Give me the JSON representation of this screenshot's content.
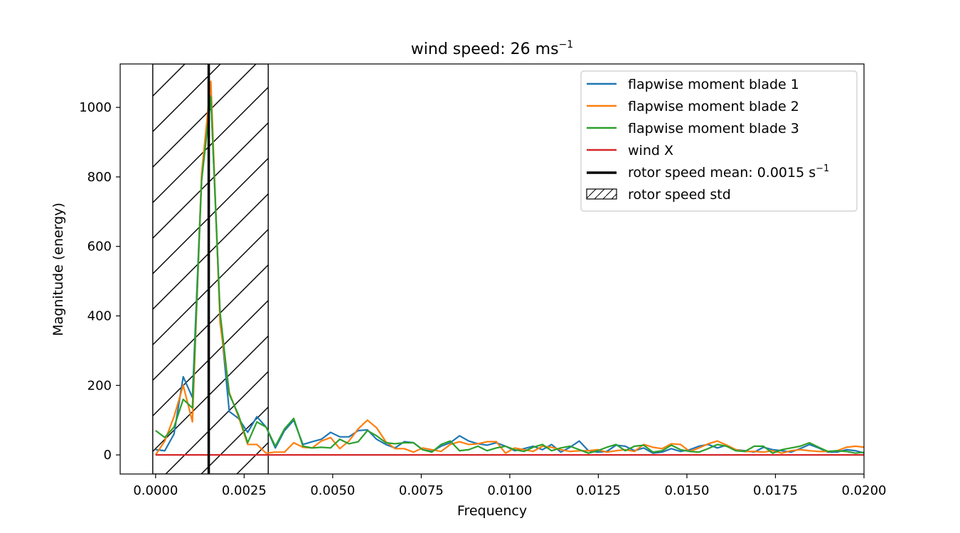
{
  "chart_data": {
    "type": "line",
    "title_main": "wind speed: 26 ms",
    "title_sup": "−1",
    "xlabel": "Frequency",
    "ylabel": "Magnitude (energy)",
    "xlim": [
      -0.001,
      0.02
    ],
    "ylim": [
      -55,
      1125
    ],
    "xticks": [
      0.0,
      0.0025,
      0.005,
      0.0075,
      0.01,
      0.0125,
      0.015,
      0.0175,
      0.02
    ],
    "xtick_labels": [
      "0.0000",
      "0.0025",
      "0.0050",
      "0.0075",
      "0.0100",
      "0.0125",
      "0.0150",
      "0.0175",
      "0.0200"
    ],
    "yticks": [
      0,
      200,
      400,
      600,
      800,
      1000
    ],
    "ytick_labels": [
      "0",
      "200",
      "400",
      "600",
      "800",
      "1000"
    ],
    "x": [
      0.0,
      0.00026,
      0.00052,
      0.00078,
      0.00104,
      0.0013,
      0.00156,
      0.00182,
      0.00208,
      0.00234,
      0.0026,
      0.00286,
      0.00312,
      0.00338,
      0.00364,
      0.0039,
      0.00416,
      0.00442,
      0.00468,
      0.00494,
      0.0052,
      0.00546,
      0.00572,
      0.00598,
      0.00624,
      0.0065,
      0.00676,
      0.00702,
      0.00728,
      0.00754,
      0.0078,
      0.00806,
      0.00832,
      0.00858,
      0.00884,
      0.0091,
      0.00936,
      0.00962,
      0.00988,
      0.01014,
      0.0104,
      0.01066,
      0.01092,
      0.01118,
      0.01144,
      0.0117,
      0.01196,
      0.01222,
      0.01248,
      0.01274,
      0.013,
      0.01326,
      0.01352,
      0.01378,
      0.01404,
      0.0143,
      0.01456,
      0.01482,
      0.01508,
      0.01534,
      0.0156,
      0.01586,
      0.01612,
      0.01638,
      0.01664,
      0.0169,
      0.01716,
      0.01742,
      0.01768,
      0.01794,
      0.0182,
      0.01846,
      0.01872,
      0.01898,
      0.01924,
      0.0195,
      0.01976,
      0.02002
    ],
    "series": [
      {
        "name": "flapwise moment blade 1",
        "color": "#1f77b4",
        "values": [
          15,
          12,
          60,
          225,
          165,
          800,
          1035,
          400,
          125,
          105,
          65,
          110,
          80,
          20,
          70,
          100,
          30,
          38,
          45,
          65,
          52,
          52,
          70,
          72,
          45,
          30,
          20,
          38,
          35,
          15,
          10,
          25,
          35,
          55,
          40,
          32,
          28,
          35,
          25,
          12,
          18,
          25,
          15,
          30,
          8,
          22,
          40,
          12,
          8,
          10,
          28,
          25,
          12,
          20,
          5,
          8,
          18,
          10,
          15,
          25,
          30,
          20,
          28,
          15,
          12,
          8,
          22,
          15,
          12,
          8,
          18,
          30,
          20,
          8,
          8,
          15,
          12,
          5
        ]
      },
      {
        "name": "flapwise moment blade 2",
        "color": "#ff7f0e",
        "values": [
          0,
          40,
          110,
          200,
          95,
          810,
          1075,
          380,
          180,
          110,
          30,
          30,
          5,
          8,
          8,
          35,
          22,
          20,
          40,
          50,
          18,
          40,
          75,
          100,
          78,
          38,
          18,
          18,
          8,
          20,
          15,
          10,
          30,
          38,
          30,
          32,
          38,
          38,
          5,
          20,
          15,
          10,
          25,
          22,
          15,
          10,
          12,
          12,
          15,
          8,
          12,
          15,
          10,
          30,
          22,
          18,
          32,
          30,
          10,
          20,
          32,
          40,
          28,
          15,
          10,
          10,
          8,
          12,
          5,
          12,
          15,
          12,
          10,
          10,
          12,
          22,
          25,
          22
        ]
      },
      {
        "name": "flapwise moment blade 3",
        "color": "#2ca02c",
        "values": [
          70,
          50,
          80,
          160,
          135,
          790,
          1030,
          410,
          175,
          115,
          35,
          95,
          80,
          25,
          75,
          105,
          25,
          20,
          22,
          20,
          45,
          32,
          38,
          70,
          55,
          35,
          32,
          35,
          35,
          15,
          8,
          30,
          40,
          12,
          15,
          25,
          12,
          20,
          25,
          15,
          10,
          22,
          30,
          12,
          20,
          25,
          15,
          5,
          12,
          22,
          30,
          12,
          25,
          28,
          8,
          12,
          28,
          15,
          10,
          8,
          18,
          30,
          25,
          12,
          10,
          25,
          25,
          5,
          15,
          20,
          25,
          35,
          22,
          10,
          12,
          10,
          5,
          8
        ]
      },
      {
        "name": "wind X",
        "color": "#d62728",
        "values": [
          0,
          0,
          0,
          0,
          0,
          0,
          0,
          0,
          0,
          0,
          0,
          0,
          0,
          0,
          0,
          0,
          0,
          0,
          0,
          0,
          0,
          0,
          0,
          0,
          0,
          0,
          0,
          0,
          0,
          0,
          0,
          0,
          0,
          0,
          0,
          0,
          0,
          0,
          0,
          0,
          0,
          0,
          0,
          0,
          0,
          0,
          0,
          0,
          0,
          0,
          0,
          0,
          0,
          0,
          0,
          0,
          0,
          0,
          0,
          0,
          0,
          0,
          0,
          0,
          0,
          0,
          0,
          0,
          0,
          0,
          0,
          0,
          0,
          0,
          0,
          0,
          0,
          0
        ]
      }
    ],
    "rotor_speed_mean": 0.0015,
    "rotor_speed_std_range": [
      -8e-05,
      0.00318
    ],
    "legend": {
      "placement": "top-right",
      "entries": [
        {
          "label": "flapwise moment blade 1",
          "kind": "line",
          "color": "#1f77b4"
        },
        {
          "label": "flapwise moment blade 2",
          "kind": "line",
          "color": "#ff7f0e"
        },
        {
          "label": "flapwise moment blade 3",
          "kind": "line",
          "color": "#2ca02c"
        },
        {
          "label": "wind X",
          "kind": "line",
          "color": "#d62728"
        },
        {
          "label": "rotor speed mean: 0.0015 s",
          "sup": "−1",
          "kind": "vline",
          "color": "#000000"
        },
        {
          "label": "rotor speed std",
          "kind": "patch",
          "color": "#000000"
        }
      ]
    },
    "grid": false
  }
}
